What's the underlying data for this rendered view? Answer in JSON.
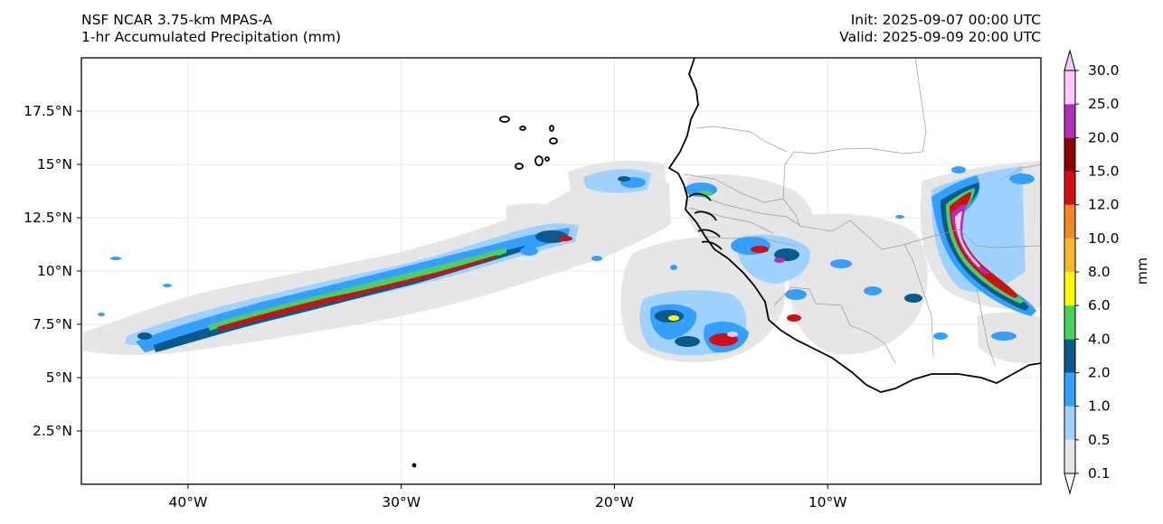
{
  "header": {
    "model": "NSF NCAR 3.75-km MPAS-A",
    "field": "1-hr Accumulated Precipitation (mm)",
    "init": "Init: 2025-09-07 00:00 UTC",
    "valid": "Valid: 2025-09-09 20:00 UTC"
  },
  "map": {
    "lon_range": [
      -45,
      0
    ],
    "lat_range": [
      0,
      20
    ],
    "lon_ticks": [
      "40°W",
      "30°W",
      "20°W",
      "10°W"
    ],
    "lat_ticks": [
      "2.5°N",
      "5°N",
      "7.5°N",
      "10°N",
      "12.5°N",
      "15°N",
      "17.5°N"
    ],
    "grid": true
  },
  "colorbar": {
    "unit": "mm",
    "labels": [
      "0.1",
      "0.5",
      "1.0",
      "2.0",
      "4.0",
      "6.0",
      "8.0",
      "10.0",
      "12.0",
      "15.0",
      "20.0",
      "25.0",
      "30.0"
    ],
    "colors": [
      "#e6e6e6",
      "#a0d2ff",
      "#33a0ff",
      "#0a5a8c",
      "#4ad060",
      "#ffff00",
      "#f8b830",
      "#f08828",
      "#d01010",
      "#8c0000",
      "#b030b8",
      "#ffc8ff"
    ]
  },
  "colors": {
    "light": "#e6e6e6",
    "blue_light": "#a0d2ff",
    "blue": "#33a0ff",
    "navy": "#0a5a8c",
    "green": "#4ad060",
    "yellow": "#ffff00",
    "red": "#d01010",
    "magenta": "#b030b8",
    "pink": "#ffc8ff"
  }
}
